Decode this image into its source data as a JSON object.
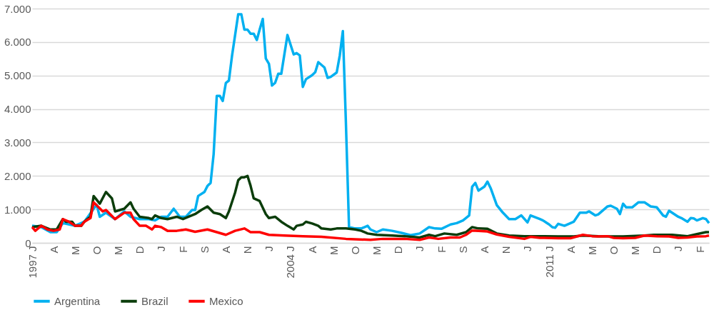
{
  "chart_data": {
    "type": "line",
    "grid": "y",
    "legend": "bottom",
    "xlim": [
      "1997-01",
      "2015-05"
    ],
    "xticks": [
      {
        "value": "1997-01",
        "label": "1997 J"
      },
      {
        "value": "1997-08",
        "label": "A"
      },
      {
        "value": "1998-03",
        "label": "M"
      },
      {
        "value": "1998-10",
        "label": "O"
      },
      {
        "value": "1999-05",
        "label": "M"
      },
      {
        "value": "1999-12",
        "label": "D"
      },
      {
        "value": "2000-07",
        "label": "J"
      },
      {
        "value": "2001-02",
        "label": "F"
      },
      {
        "value": "2001-09",
        "label": "S"
      },
      {
        "value": "2002-04",
        "label": "A"
      },
      {
        "value": "2002-11",
        "label": "N"
      },
      {
        "value": "2003-06",
        "label": "J"
      },
      {
        "value": "2004-01",
        "label": "2004 J"
      },
      {
        "value": "2004-08",
        "label": "A"
      },
      {
        "value": "2005-03",
        "label": "M"
      },
      {
        "value": "2005-10",
        "label": "O"
      },
      {
        "value": "2006-05",
        "label": "M"
      },
      {
        "value": "2006-12",
        "label": "D"
      },
      {
        "value": "2007-07",
        "label": "J"
      },
      {
        "value": "2008-02",
        "label": "F"
      },
      {
        "value": "2008-09",
        "label": "S"
      },
      {
        "value": "2009-04",
        "label": "A"
      },
      {
        "value": "2009-11",
        "label": "N"
      },
      {
        "value": "2010-06",
        "label": "J"
      },
      {
        "value": "2011-01",
        "label": "2011 J"
      },
      {
        "value": "2011-08",
        "label": "A"
      },
      {
        "value": "2012-03",
        "label": "M"
      },
      {
        "value": "2012-10",
        "label": "O"
      },
      {
        "value": "2013-05",
        "label": "M"
      },
      {
        "value": "2013-12",
        "label": "D"
      },
      {
        "value": "2014-07",
        "label": "J"
      },
      {
        "value": "2015-02",
        "label": "F"
      }
    ],
    "ylim": [
      0,
      7000
    ],
    "yticks": [
      {
        "value": 0,
        "label": "0"
      },
      {
        "value": 1000,
        "label": "1.000"
      },
      {
        "value": 2000,
        "label": "2.000"
      },
      {
        "value": 3000,
        "label": "3.000"
      },
      {
        "value": 4000,
        "label": "4.000"
      },
      {
        "value": 5000,
        "label": "5.000"
      },
      {
        "value": 6000,
        "label": "6.000"
      },
      {
        "value": 7000,
        "label": "7.000"
      }
    ],
    "series": [
      {
        "name": "Argentina",
        "color": "#00b0f0",
        "x": [
          "1997-01",
          "1997-04",
          "1997-07",
          "1997-09",
          "1997-11",
          "1998-03",
          "1998-06",
          "1998-10",
          "1998-11",
          "1999-01",
          "1999-04",
          "1999-07",
          "1999-09",
          "1999-12",
          "2000-03",
          "2000-05",
          "2000-07",
          "2000-09",
          "2000-11",
          "2001-01",
          "2001-03",
          "2001-05",
          "2001-06",
          "2001-07",
          "2001-09",
          "2001-10",
          "2001-11",
          "2001-12",
          "2002-01",
          "2002-02",
          "2002-03",
          "2002-04",
          "2002-05",
          "2002-06",
          "2002-08",
          "2002-09",
          "2002-10",
          "2002-11",
          "2002-12",
          "2003-01",
          "2003-02",
          "2003-03",
          "2003-04",
          "2003-05",
          "2003-06",
          "2003-07",
          "2003-08",
          "2003-09",
          "2003-10",
          "2003-12",
          "2004-02",
          "2004-03",
          "2004-04",
          "2004-05",
          "2004-06",
          "2004-08",
          "2004-09",
          "2004-10",
          "2004-12",
          "2005-01",
          "2005-02",
          "2005-04",
          "2005-05",
          "2005-06",
          "2005-07",
          "2005-08",
          "2005-10",
          "2005-12",
          "2006-02",
          "2006-03",
          "2006-05",
          "2006-07",
          "2006-10",
          "2007-01",
          "2007-04",
          "2007-07",
          "2007-10",
          "2007-12",
          "2008-02",
          "2008-05",
          "2008-07",
          "2008-09",
          "2008-11",
          "2008-12",
          "2009-01",
          "2009-02",
          "2009-04",
          "2009-05",
          "2009-06",
          "2009-08",
          "2009-10",
          "2009-12",
          "2010-02",
          "2010-04",
          "2010-06",
          "2010-07",
          "2010-10",
          "2010-11",
          "2011-01",
          "2011-02",
          "2011-03",
          "2011-04",
          "2011-06",
          "2011-08",
          "2011-09",
          "2011-11",
          "2012-01",
          "2012-02",
          "2012-04",
          "2012-05",
          "2012-08",
          "2012-09",
          "2012-11",
          "2012-12",
          "2013-01",
          "2013-02",
          "2013-04",
          "2013-06",
          "2013-07",
          "2013-08",
          "2013-10",
          "2013-12",
          "2014-02",
          "2014-03",
          "2014-04",
          "2014-07",
          "2014-08",
          "2014-10",
          "2014-11",
          "2014-12",
          "2015-01",
          "2015-03",
          "2015-04",
          "2015-05"
        ],
        "values": [
          510,
          470,
          320,
          320,
          590,
          510,
          630,
          1140,
          780,
          900,
          710,
          940,
          780,
          710,
          710,
          670,
          780,
          780,
          1020,
          780,
          780,
          980,
          980,
          1400,
          1520,
          1700,
          1790,
          2650,
          4390,
          4390,
          4240,
          4780,
          4850,
          5590,
          6830,
          6830,
          6370,
          6370,
          6250,
          6250,
          6060,
          6370,
          6690,
          5510,
          5350,
          4700,
          4780,
          5050,
          5050,
          6210,
          5630,
          5670,
          5600,
          4660,
          4890,
          5010,
          5100,
          5400,
          5240,
          4930,
          4960,
          5090,
          5590,
          6330,
          3600,
          470,
          430,
          430,
          510,
          400,
          320,
          400,
          360,
          300,
          230,
          280,
          470,
          430,
          420,
          550,
          590,
          670,
          820,
          1680,
          1790,
          1560,
          1680,
          1830,
          1640,
          1130,
          900,
          710,
          710,
          820,
          610,
          820,
          710,
          670,
          550,
          470,
          450,
          570,
          510,
          590,
          630,
          900,
          900,
          940,
          820,
          850,
          1090,
          1110,
          1020,
          860,
          1170,
          1060,
          1060,
          1210,
          1210,
          1210,
          1090,
          1060,
          820,
          780,
          960,
          780,
          740,
          630,
          740,
          730,
          670,
          740,
          710,
          590
        ]
      },
      {
        "name": "Brazil",
        "color": "#0b3d0b",
        "x": [
          "1997-01",
          "1997-04",
          "1997-07",
          "1997-09",
          "1997-11",
          "1997-12",
          "1998-02",
          "1998-03",
          "1998-05",
          "1998-06",
          "1998-08",
          "1998-09",
          "1998-11",
          "1999-01",
          "1999-03",
          "1999-04",
          "1999-07",
          "1999-09",
          "1999-10",
          "1999-12",
          "2000-03",
          "2000-04",
          "2000-05",
          "2000-07",
          "2000-09",
          "2000-12",
          "2001-02",
          "2001-06",
          "2001-08",
          "2001-10",
          "2001-12",
          "2002-02",
          "2002-04",
          "2002-05",
          "2002-07",
          "2002-08",
          "2002-09",
          "2002-10",
          "2002-11",
          "2002-12",
          "2003-01",
          "2003-03",
          "2003-05",
          "2003-06",
          "2003-08",
          "2003-10",
          "2003-12",
          "2004-02",
          "2004-03",
          "2004-05",
          "2004-06",
          "2004-08",
          "2004-10",
          "2004-11",
          "2005-02",
          "2005-04",
          "2005-07",
          "2005-10",
          "2005-12",
          "2006-02",
          "2006-05",
          "2006-10",
          "2007-02",
          "2007-07",
          "2007-10",
          "2007-12",
          "2008-03",
          "2008-07",
          "2008-10",
          "2008-12",
          "2009-02",
          "2009-05",
          "2009-08",
          "2009-12",
          "2010-05",
          "2010-09",
          "2011-04",
          "2011-09",
          "2011-12",
          "2012-05",
          "2013-01",
          "2013-08",
          "2013-11",
          "2014-05",
          "2014-10",
          "2015-01",
          "2015-04",
          "2015-05"
        ],
        "values": [
          470,
          510,
          400,
          400,
          710,
          630,
          630,
          510,
          510,
          630,
          780,
          1400,
          1170,
          1520,
          1330,
          940,
          1020,
          1210,
          1020,
          780,
          740,
          710,
          820,
          740,
          710,
          780,
          710,
          860,
          980,
          1090,
          900,
          860,
          740,
          940,
          1500,
          1870,
          1960,
          1960,
          2000,
          1710,
          1330,
          1250,
          860,
          740,
          780,
          630,
          510,
          400,
          510,
          550,
          630,
          580,
          510,
          430,
          400,
          430,
          430,
          400,
          360,
          280,
          240,
          220,
          200,
          160,
          240,
          200,
          280,
          240,
          320,
          470,
          430,
          420,
          280,
          220,
          200,
          200,
          190,
          190,
          220,
          200,
          190,
          220,
          240,
          240,
          200,
          260,
          320,
          320
        ]
      },
      {
        "name": "Mexico",
        "color": "#ff0000",
        "x": [
          "1997-01",
          "1997-02",
          "1997-04",
          "1997-06",
          "1997-08",
          "1997-10",
          "1997-11",
          "1998-01",
          "1998-03",
          "1998-05",
          "1998-06",
          "1998-08",
          "1998-09",
          "1998-12",
          "1999-01",
          "1999-04",
          "1999-07",
          "1999-09",
          "1999-10",
          "1999-12",
          "2000-02",
          "2000-04",
          "2000-05",
          "2000-07",
          "2000-09",
          "2000-12",
          "2001-03",
          "2001-06",
          "2001-10",
          "2002-01",
          "2002-04",
          "2002-07",
          "2002-10",
          "2002-12",
          "2003-03",
          "2003-06",
          "2003-11",
          "2004-05",
          "2004-11",
          "2005-07",
          "2006-03",
          "2006-07",
          "2006-10",
          "2007-02",
          "2007-07",
          "2007-10",
          "2008-01",
          "2008-05",
          "2008-08",
          "2008-10",
          "2008-12",
          "2009-02",
          "2009-05",
          "2009-08",
          "2009-12",
          "2010-05",
          "2010-07",
          "2010-10",
          "2011-04",
          "2011-08",
          "2011-12",
          "2012-03",
          "2012-05",
          "2012-08",
          "2012-10",
          "2013-01",
          "2013-05",
          "2013-08",
          "2013-12",
          "2014-04",
          "2014-07",
          "2014-10",
          "2015-01",
          "2015-04",
          "2015-05"
        ],
        "values": [
          470,
          360,
          510,
          400,
          360,
          400,
          710,
          630,
          510,
          510,
          630,
          740,
          1210,
          940,
          980,
          710,
          900,
          900,
          710,
          510,
          510,
          400,
          510,
          470,
          360,
          360,
          400,
          330,
          400,
          320,
          240,
          360,
          430,
          320,
          320,
          240,
          220,
          200,
          180,
          120,
          90,
          120,
          120,
          120,
          90,
          160,
          120,
          160,
          160,
          240,
          370,
          360,
          340,
          250,
          180,
          120,
          180,
          150,
          140,
          140,
          240,
          200,
          190,
          200,
          150,
          140,
          150,
          220,
          200,
          190,
          150,
          160,
          190,
          200,
          220
        ]
      }
    ]
  }
}
